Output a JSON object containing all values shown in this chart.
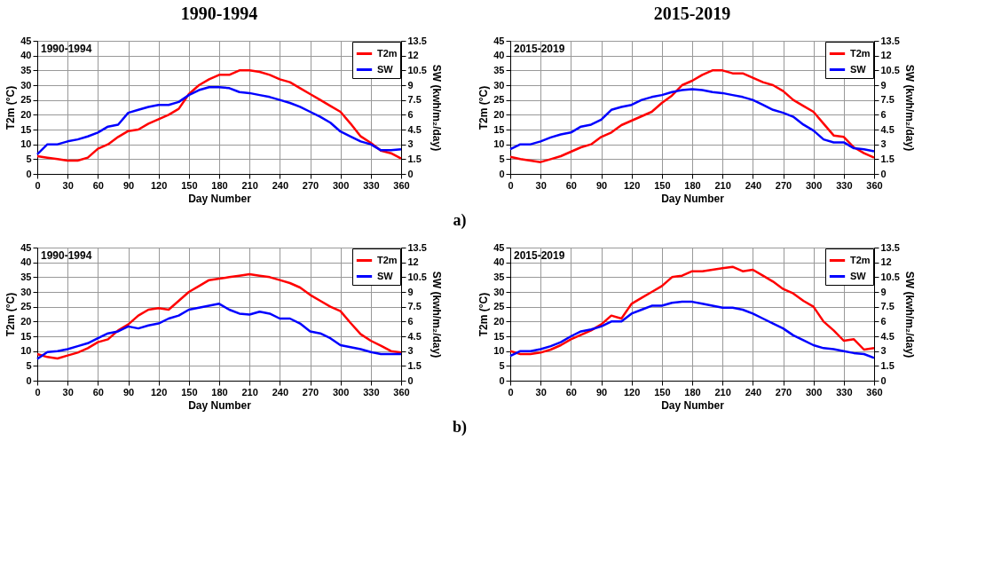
{
  "chart_data": [
    {
      "type": "line",
      "title": "1990-1994",
      "xlabel": "Day Number",
      "ylabel": "T2m (°C)",
      "y2label": "SW (kwh/m₂/day)",
      "annotations": [
        "1990-1994"
      ],
      "xlim": [
        0,
        360
      ],
      "xticks": [
        0,
        30,
        60,
        90,
        120,
        150,
        180,
        210,
        240,
        270,
        300,
        330,
        360
      ],
      "ylim": [
        0,
        45
      ],
      "yticks": [
        0,
        5,
        10,
        15,
        20,
        25,
        30,
        35,
        40,
        45
      ],
      "y2lim": [
        0,
        13.5
      ],
      "y2ticks": [
        0,
        1.5,
        3,
        4.5,
        6,
        7.5,
        9,
        10.5,
        12,
        13.5
      ],
      "grid": true,
      "legend": "top right",
      "x": [
        0,
        10,
        20,
        30,
        40,
        50,
        60,
        70,
        80,
        90,
        100,
        110,
        120,
        130,
        140,
        150,
        160,
        170,
        180,
        190,
        200,
        210,
        220,
        230,
        240,
        250,
        260,
        270,
        280,
        290,
        300,
        310,
        320,
        330,
        340,
        350,
        360
      ],
      "series": [
        {
          "name": "T2m",
          "color": "#ff0000",
          "values": [
            6,
            5.5,
            5,
            4.5,
            4.5,
            5.5,
            8.5,
            10,
            12.5,
            14.5,
            15,
            17,
            18.5,
            20,
            22,
            27,
            30,
            32,
            33.5,
            33.5,
            35,
            35,
            34.5,
            33.5,
            32,
            31,
            29,
            27,
            25,
            23,
            21,
            17,
            12.7,
            10.5,
            7.9,
            7,
            5.2
          ]
        },
        {
          "name": "SW",
          "color": "#0000ff",
          "axis": "y2",
          "values": [
            2,
            3,
            3,
            3.3,
            3.5,
            3.8,
            4.2,
            4.8,
            5,
            6.2,
            6.5,
            6.8,
            7,
            7,
            7.3,
            8,
            8.5,
            8.8,
            8.8,
            8.7,
            8.3,
            8.2,
            8,
            7.8,
            7.5,
            7.2,
            6.8,
            6.3,
            5.8,
            5.2,
            4.3,
            3.8,
            3.3,
            3,
            2.4,
            2.4,
            2.5
          ]
        }
      ]
    },
    {
      "type": "line",
      "title": "2015-2019",
      "xlabel": "Day Number",
      "ylabel": "T2m (°C)",
      "y2label": "SW (kwh/m₂/day)",
      "annotations": [
        "2015-2019",
        "a)"
      ],
      "xlim": [
        0,
        360
      ],
      "xticks": [
        0,
        30,
        60,
        90,
        120,
        150,
        180,
        210,
        240,
        270,
        300,
        330,
        360
      ],
      "ylim": [
        0,
        45
      ],
      "yticks": [
        0,
        5,
        10,
        15,
        20,
        25,
        30,
        35,
        40,
        45
      ],
      "y2lim": [
        0,
        13.5
      ],
      "y2ticks": [
        0,
        1.5,
        3,
        4.5,
        6,
        7.5,
        9,
        10.5,
        12,
        13.5
      ],
      "grid": true,
      "legend": "top right",
      "x": [
        0,
        10,
        20,
        30,
        40,
        50,
        60,
        70,
        80,
        90,
        100,
        110,
        120,
        130,
        140,
        150,
        160,
        170,
        180,
        190,
        200,
        210,
        220,
        230,
        240,
        250,
        260,
        270,
        280,
        290,
        300,
        310,
        320,
        330,
        340,
        350,
        360
      ],
      "series": [
        {
          "name": "T2m",
          "color": "#ff0000",
          "values": [
            5.8,
            5,
            4.5,
            4,
            5,
            6,
            7.5,
            9,
            10,
            12.5,
            14,
            16.5,
            18,
            19.5,
            21,
            24,
            26.5,
            30,
            31.5,
            33.5,
            35,
            35,
            34,
            34,
            32.5,
            31,
            30,
            28,
            25,
            23,
            21,
            17,
            13,
            12.5,
            9,
            7,
            5.5
          ]
        },
        {
          "name": "SW",
          "color": "#0000ff",
          "axis": "y2",
          "values": [
            2.5,
            3,
            3,
            3.3,
            3.7,
            4,
            4.2,
            4.8,
            5,
            5.5,
            6.5,
            6.8,
            7,
            7.5,
            7.8,
            8,
            8.3,
            8.5,
            8.6,
            8.5,
            8.3,
            8.2,
            8,
            7.8,
            7.5,
            7,
            6.5,
            6.2,
            5.8,
            5,
            4.4,
            3.5,
            3.2,
            3.2,
            2.6,
            2.5,
            2.3
          ]
        }
      ]
    },
    {
      "type": "line",
      "xlabel": "Day Number",
      "ylabel": "T2m (°C)",
      "y2label": "SW (kwh/m₂/day)",
      "annotations": [
        "1990-1994"
      ],
      "xlim": [
        0,
        360
      ],
      "xticks": [
        0,
        30,
        60,
        90,
        120,
        150,
        180,
        210,
        240,
        270,
        300,
        330,
        360
      ],
      "ylim": [
        0,
        45
      ],
      "yticks": [
        0,
        5,
        10,
        15,
        20,
        25,
        30,
        35,
        40,
        45
      ],
      "y2lim": [
        0,
        13.5
      ],
      "y2ticks": [
        0,
        1.5,
        3,
        4.5,
        6,
        7.5,
        9,
        10.5,
        12,
        13.5
      ],
      "grid": true,
      "legend": "top right",
      "x": [
        0,
        10,
        20,
        30,
        40,
        50,
        60,
        70,
        80,
        90,
        100,
        110,
        120,
        130,
        140,
        150,
        160,
        170,
        180,
        190,
        200,
        210,
        220,
        230,
        240,
        250,
        260,
        270,
        280,
        290,
        300,
        310,
        320,
        330,
        340,
        350,
        360
      ],
      "series": [
        {
          "name": "T2m",
          "color": "#ff0000",
          "values": [
            9,
            8,
            7.5,
            8.5,
            9.5,
            11,
            13,
            14,
            17,
            19,
            22,
            24,
            24.5,
            24,
            27,
            30,
            32,
            34,
            34.5,
            35,
            35.5,
            36,
            35.5,
            35,
            34,
            33,
            31.5,
            29,
            27,
            25,
            23.5,
            19.5,
            15.7,
            13.5,
            11.8,
            10,
            9.5
          ]
        },
        {
          "name": "SW",
          "color": "#0000ff",
          "axis": "y2",
          "values": [
            2.2,
            2.9,
            3,
            3.2,
            3.5,
            3.8,
            4.3,
            4.8,
            5,
            5.5,
            5.3,
            5.6,
            5.8,
            6.3,
            6.6,
            7.2,
            7.4,
            7.6,
            7.8,
            7.2,
            6.8,
            6.7,
            7,
            6.8,
            6.3,
            6.3,
            5.8,
            5,
            4.8,
            4.3,
            3.6,
            3.4,
            3.2,
            2.9,
            2.7,
            2.7,
            2.7
          ]
        }
      ]
    },
    {
      "type": "line",
      "xlabel": "Day Number",
      "ylabel": "T2m (°C)",
      "y2label": "SW (kwh/m₂/day)",
      "annotations": [
        "2015-2019",
        "b)"
      ],
      "xlim": [
        0,
        360
      ],
      "xticks": [
        0,
        30,
        60,
        90,
        120,
        150,
        180,
        210,
        240,
        270,
        300,
        330,
        360
      ],
      "ylim": [
        0,
        45
      ],
      "yticks": [
        0,
        5,
        10,
        15,
        20,
        25,
        30,
        35,
        40,
        45
      ],
      "y2lim": [
        0,
        13.5
      ],
      "y2ticks": [
        0,
        1.5,
        3,
        4.5,
        6,
        7.5,
        9,
        10.5,
        12,
        13.5
      ],
      "grid": true,
      "legend": "top right",
      "x": [
        0,
        10,
        20,
        30,
        40,
        50,
        60,
        70,
        80,
        90,
        100,
        110,
        120,
        130,
        140,
        150,
        160,
        170,
        180,
        190,
        200,
        210,
        220,
        230,
        240,
        250,
        260,
        270,
        280,
        290,
        300,
        310,
        320,
        330,
        340,
        350,
        360
      ],
      "series": [
        {
          "name": "T2m",
          "color": "#ff0000",
          "values": [
            10,
            9,
            9,
            9.5,
            10.5,
            12,
            14,
            15.5,
            17,
            19,
            22,
            21,
            26,
            28,
            30,
            32,
            35,
            35.5,
            37,
            37,
            37.5,
            38,
            38.5,
            37,
            37.5,
            35.5,
            33.5,
            31,
            29.5,
            27,
            25,
            20,
            17,
            13.5,
            14,
            10.5,
            11
          ]
        },
        {
          "name": "SW",
          "color": "#0000ff",
          "axis": "y2",
          "values": [
            2.5,
            3,
            3,
            3.2,
            3.5,
            3.9,
            4.5,
            5,
            5.2,
            5.5,
            6,
            6,
            6.8,
            7.2,
            7.6,
            7.6,
            7.9,
            8,
            8,
            7.8,
            7.6,
            7.4,
            7.4,
            7.2,
            6.8,
            6.3,
            5.8,
            5.3,
            4.6,
            4.1,
            3.6,
            3.3,
            3.2,
            3,
            2.8,
            2.7,
            2.3
          ]
        }
      ]
    }
  ]
}
